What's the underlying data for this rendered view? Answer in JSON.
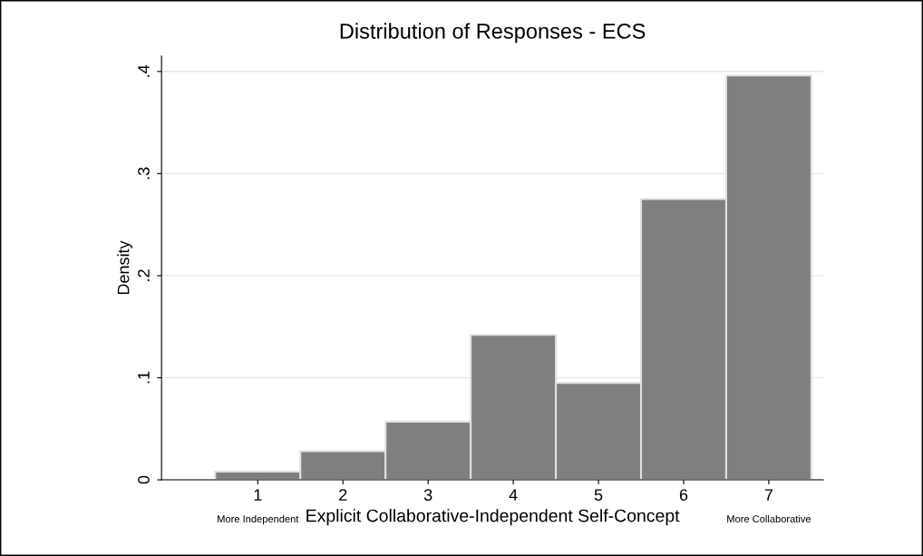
{
  "chart_data": {
    "type": "histogram",
    "title": "Distribution of Responses - ECS",
    "xlabel": "Explicit Collaborative-Independent Self-Concept",
    "ylabel": "Density",
    "bins": [
      0.5,
      1.5,
      2.5,
      3.5,
      4.5,
      5.5,
      6.5,
      7.5
    ],
    "values": [
      0.008,
      0.028,
      0.057,
      0.142,
      0.095,
      0.275,
      0.396
    ],
    "color": "#7f7f7f",
    "xlim": [
      -0.13,
      7.64
    ],
    "xticks": [
      1,
      2,
      3,
      4,
      5,
      6,
      7
    ],
    "ylim": [
      0,
      0.415
    ],
    "yticks": [
      {
        "value": 0,
        "label": "0"
      },
      {
        "value": 0.1,
        "label": ".1"
      },
      {
        "value": 0.2,
        "label": ".2"
      },
      {
        "value": 0.3,
        "label": ".3"
      },
      {
        "value": 0.4,
        "label": ".4"
      }
    ],
    "grid": "y",
    "annotations": [
      "More Independent",
      "More Collaborative"
    ]
  }
}
